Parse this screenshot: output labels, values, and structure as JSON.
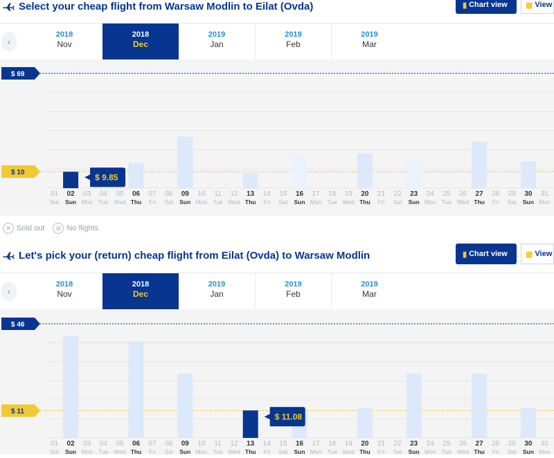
{
  "outbound": {
    "title": "Select your cheap flight from Warsaw Modlin to Eilat (Ovda)",
    "chart_view_label": "Chart view",
    "view_by_label": "View b",
    "months": [
      {
        "year": "2018",
        "month": "Nov",
        "selected": false
      },
      {
        "year": "2018",
        "month": "Dec",
        "selected": true
      },
      {
        "year": "2019",
        "month": "Jan",
        "selected": false
      },
      {
        "year": "2019",
        "month": "Feb",
        "selected": false
      },
      {
        "year": "2019",
        "month": "Mar",
        "selected": false
      }
    ]
  },
  "return": {
    "title": "Let's pick your (return) cheap flight from Eilat (Ovda) to Warsaw Modlin",
    "chart_view_label": "Chart view",
    "view_by_label": "View b",
    "months": [
      {
        "year": "2018",
        "month": "Nov",
        "selected": false
      },
      {
        "year": "2018",
        "month": "Dec",
        "selected": true
      },
      {
        "year": "2019",
        "month": "Jan",
        "selected": false
      },
      {
        "year": "2019",
        "month": "Feb",
        "selected": false
      },
      {
        "year": "2019",
        "month": "Mar",
        "selected": false
      }
    ]
  },
  "legend": {
    "sold_out": "Sold out",
    "no_flights": "No flights"
  },
  "colors": {
    "navy": "#073590",
    "yellow": "#f1c933",
    "bar": "#dbe9fb",
    "bar_light": "#e9f2fd",
    "selected_bar": "#073590"
  },
  "chart_data": [
    {
      "type": "bar",
      "y_max_label": "$ 69",
      "y_avg_label": "$ 10",
      "y_max": 69,
      "y_avg": 10,
      "days": [
        "01",
        "02",
        "03",
        "04",
        "05",
        "06",
        "07",
        "08",
        "09",
        "10",
        "11",
        "12",
        "13",
        "14",
        "15",
        "16",
        "17",
        "18",
        "19",
        "20",
        "21",
        "22",
        "23",
        "24",
        "25",
        "26",
        "27",
        "28",
        "29",
        "30",
        "31"
      ],
      "weekdays": [
        "Sat",
        "Sun",
        "Mon",
        "Tue",
        "Wed",
        "Thu",
        "Fri",
        "Sat",
        "Sun",
        "Mon",
        "Tue",
        "Wed",
        "Thu",
        "Fri",
        "Sat",
        "Sun",
        "Mon",
        "Tue",
        "Wed",
        "Thu",
        "Fri",
        "Sat",
        "Sun",
        "Mon",
        "Tue",
        "Wed",
        "Thu",
        "Fri",
        "Sat",
        "Sun",
        "Mon"
      ],
      "values": [
        null,
        9.85,
        null,
        null,
        null,
        15,
        null,
        null,
        31,
        null,
        null,
        null,
        9,
        null,
        null,
        20,
        null,
        null,
        null,
        21,
        null,
        null,
        16,
        null,
        null,
        null,
        28,
        null,
        null,
        16,
        null
      ],
      "light_days": [
        "16",
        "23"
      ],
      "selected_day": "02",
      "selected_price": "$ 9.85"
    },
    {
      "type": "bar",
      "y_max_label": "$ 46",
      "y_avg_label": "$ 11",
      "y_max": 46,
      "y_avg": 11,
      "days": [
        "01",
        "02",
        "03",
        "04",
        "05",
        "06",
        "07",
        "08",
        "09",
        "10",
        "11",
        "12",
        "13",
        "14",
        "15",
        "16",
        "17",
        "18",
        "19",
        "20",
        "21",
        "22",
        "23",
        "24",
        "25",
        "26",
        "27",
        "28",
        "29",
        "30",
        "31"
      ],
      "weekdays": [
        "Sat",
        "Sun",
        "Mon",
        "Tue",
        "Wed",
        "Thu",
        "Fri",
        "Sat",
        "Sun",
        "Mon",
        "Tue",
        "Wed",
        "Thu",
        "Fri",
        "Sat",
        "Sun",
        "Mon",
        "Tue",
        "Wed",
        "Thu",
        "Fri",
        "Sat",
        "Sun",
        "Mon",
        "Tue",
        "Wed",
        "Thu",
        "Fri",
        "Sat",
        "Sun",
        "Mon"
      ],
      "values": [
        null,
        41,
        null,
        null,
        null,
        39,
        null,
        null,
        26,
        null,
        null,
        null,
        11.08,
        null,
        null,
        12,
        null,
        null,
        null,
        12,
        null,
        null,
        26,
        null,
        null,
        null,
        26,
        null,
        null,
        12,
        null
      ],
      "light_days": [],
      "selected_day": "13",
      "selected_price": "$ 11.08"
    }
  ]
}
